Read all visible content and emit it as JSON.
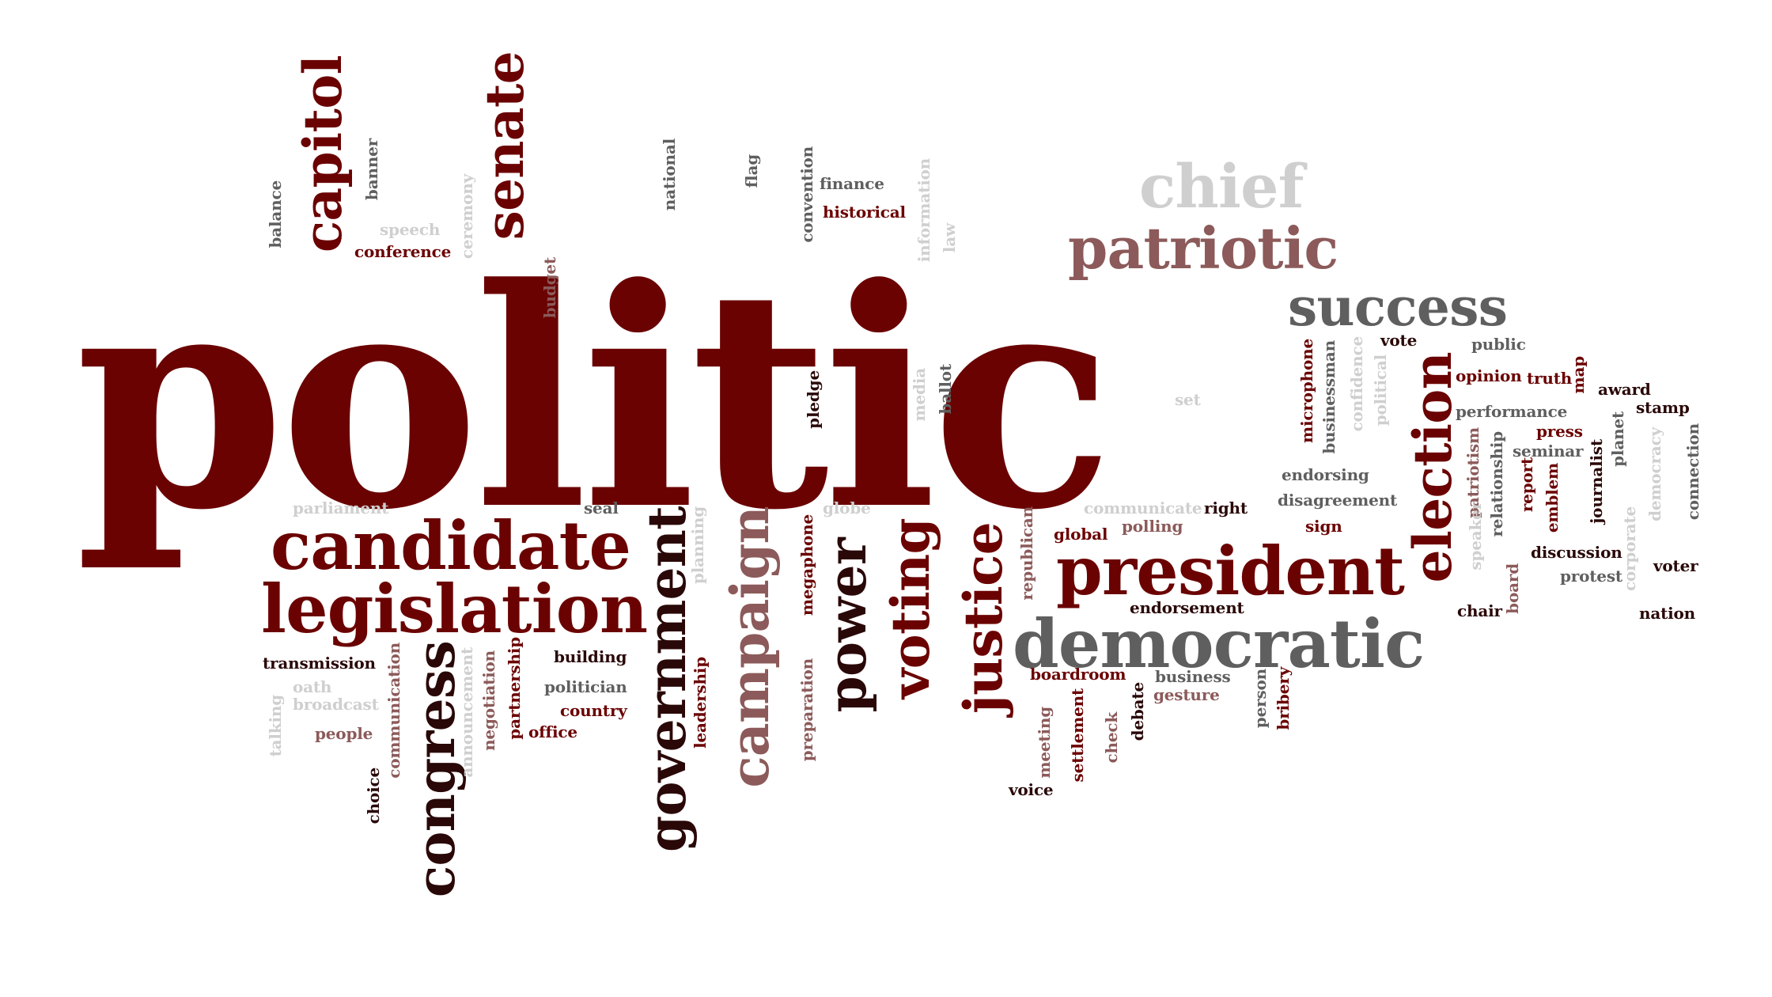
{
  "colors": {
    "dark_red": "#6b0202",
    "near_black": "#2a0808",
    "dark_gray": "#5f5f5f",
    "mid_gray": "#7a7a7a",
    "light_gray": "#cfcfcf",
    "rose": "#8c5a5a",
    "light_rose": "#a98080"
  },
  "words": [
    "politic",
    "candidate",
    "legislation",
    "president",
    "democratic",
    "patriotic",
    "chief",
    "success",
    "election",
    "capitol",
    "senate",
    "congress",
    "government",
    "campaign",
    "power",
    "voting",
    "justice",
    "balance",
    "banner",
    "speech",
    "ceremony",
    "conference",
    "budget",
    "national",
    "flag",
    "convention",
    "finance",
    "historical",
    "information",
    "law",
    "pledge",
    "media",
    "ballot",
    "microphone",
    "businessman",
    "confidence",
    "political",
    "vote",
    "public",
    "set",
    "opinion",
    "truth",
    "map",
    "award",
    "stamp",
    "performance",
    "press",
    "seminar",
    "endorsing",
    "disagreement",
    "patriotism",
    "relationship",
    "report",
    "emblem",
    "journalist",
    "planet",
    "democracy",
    "connection",
    "right",
    "sign",
    "parliament",
    "seal",
    "globe",
    "communicate",
    "polling",
    "global",
    "republican",
    "megaphone",
    "planning",
    "endorsement",
    "discussion",
    "protest",
    "voter",
    "speaker",
    "board",
    "corporate",
    "chair",
    "nation",
    "transmission",
    "oath",
    "broadcast",
    "talking",
    "people",
    "choice",
    "communication",
    "announcement",
    "negotiation",
    "partnership",
    "building",
    "politician",
    "country",
    "office",
    "leadership",
    "preparation",
    "boardroom",
    "business",
    "gesture",
    "person",
    "bribery",
    "meeting",
    "settlement",
    "check",
    "debate",
    "voice"
  ]
}
